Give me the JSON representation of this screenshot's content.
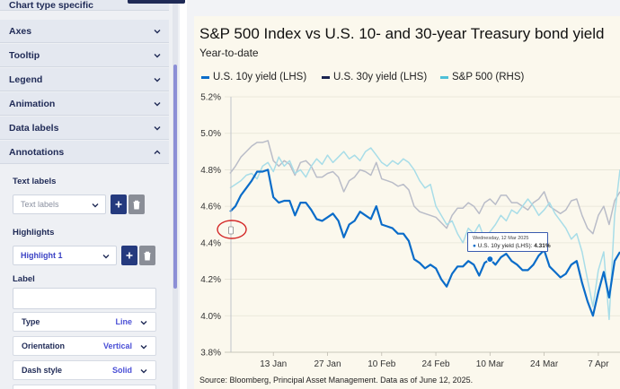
{
  "panel": {
    "top_partial_label": "Chart type specific",
    "accordions": [
      {
        "label": "Axes",
        "state": "collapsed"
      },
      {
        "label": "Tooltip",
        "state": "collapsed"
      },
      {
        "label": "Legend",
        "state": "collapsed"
      },
      {
        "label": "Animation",
        "state": "collapsed"
      },
      {
        "label": "Data labels",
        "state": "collapsed"
      },
      {
        "label": "Annotations",
        "state": "expanded"
      }
    ],
    "annotations": {
      "text_labels_heading": "Text labels",
      "text_labels_placeholder": "Text labels",
      "highlights_heading": "Highlights",
      "highlight_selected": "Highlight 1",
      "label_heading": "Label",
      "label_value": "",
      "properties": [
        {
          "name": "Type",
          "value": "Line"
        },
        {
          "name": "Orientation",
          "value": "Vertical"
        },
        {
          "name": "Dash style",
          "value": "Solid"
        }
      ]
    }
  },
  "chart": {
    "title": "S&P 500 Index vs U.S. 10- and 30-year Treasury bond yield",
    "subtitle": "Year-to-date",
    "legend": [
      {
        "label": "U.S. 10y yield (LHS)",
        "color": "#0a6cc9"
      },
      {
        "label": "U.S. 30y yield (LHS)",
        "color": "#1a2450"
      },
      {
        "label": "S&P 500 (RHS)",
        "color": "#4ec0d8"
      }
    ],
    "source": "Source: Bloomberg, Principal Asset Management. Data as of June 12, 2025.",
    "tooltip": {
      "date": "Wednesday, 12 Mar 2025",
      "series": "U.S. 10y yield (LHS):",
      "value": "4.31%"
    }
  },
  "chart_data": {
    "type": "line",
    "title": "S&P 500 Index vs U.S. 10- and 30-year Treasury bond yield",
    "subtitle": "Year-to-date",
    "ylabel": "",
    "ylim": [
      3.8,
      5.2
    ],
    "yticks": [
      "3.8%",
      "4.0%",
      "4.2%",
      "4.4%",
      "4.6%",
      "4.8%",
      "5.0%",
      "5.2%"
    ],
    "xtick_labels": [
      "13 Jan",
      "27 Jan",
      "10 Feb",
      "24 Feb",
      "10 Mar",
      "24 Mar",
      "7 Apr"
    ],
    "xtick_positions": [
      8,
      18,
      28,
      38,
      48,
      58,
      68
    ],
    "xlim": [
      0,
      72
    ],
    "series": [
      {
        "name": "U.S. 10y yield (LHS)",
        "color": "#0a6cc9",
        "x": [
          0,
          1,
          2,
          3,
          4,
          5,
          6,
          7,
          8,
          9,
          10,
          11,
          12,
          13,
          14,
          15,
          16,
          17,
          18,
          19,
          20,
          21,
          22,
          23,
          24,
          25,
          26,
          27,
          28,
          29,
          30,
          31,
          32,
          33,
          34,
          35,
          36,
          37,
          38,
          39,
          40,
          41,
          42,
          43,
          44,
          45,
          46,
          47,
          48,
          49,
          50,
          51,
          52,
          53,
          54,
          55,
          56,
          57,
          58,
          59,
          60,
          61,
          62,
          63,
          64,
          65,
          66,
          67,
          68,
          69,
          70,
          71,
          72
        ],
        "values": [
          4.57,
          4.6,
          4.66,
          4.7,
          4.74,
          4.79,
          4.79,
          4.8,
          4.65,
          4.62,
          4.63,
          4.63,
          4.55,
          4.62,
          4.62,
          4.58,
          4.53,
          4.52,
          4.54,
          4.56,
          4.52,
          4.43,
          4.5,
          4.52,
          4.57,
          4.55,
          4.53,
          4.6,
          4.5,
          4.49,
          4.48,
          4.45,
          4.45,
          4.41,
          4.31,
          4.29,
          4.26,
          4.28,
          4.26,
          4.2,
          4.16,
          4.23,
          4.27,
          4.27,
          4.3,
          4.28,
          4.22,
          4.29,
          4.31,
          4.28,
          4.32,
          4.34,
          4.3,
          4.28,
          4.25,
          4.25,
          4.28,
          4.33,
          4.36,
          4.27,
          4.24,
          4.21,
          4.23,
          4.28,
          4.3,
          4.18,
          4.08,
          4.0,
          4.13,
          4.24,
          4.1,
          4.3,
          4.35
        ]
      },
      {
        "name": "U.S. 30y yield (LHS)",
        "color": "#b9bcc8",
        "x": [
          0,
          1,
          2,
          3,
          4,
          5,
          6,
          7,
          8,
          9,
          10,
          11,
          12,
          13,
          14,
          15,
          16,
          17,
          18,
          19,
          20,
          21,
          22,
          23,
          24,
          25,
          26,
          27,
          28,
          29,
          30,
          31,
          32,
          33,
          34,
          35,
          36,
          37,
          38,
          39,
          40,
          41,
          42,
          43,
          44,
          45,
          46,
          47,
          48,
          49,
          50,
          51,
          52,
          53,
          54,
          55,
          56,
          57,
          58,
          59,
          60,
          61,
          62,
          63,
          64,
          65,
          66,
          67,
          68,
          69,
          70,
          71,
          72
        ],
        "values": [
          4.78,
          4.82,
          4.87,
          4.9,
          4.93,
          4.95,
          4.95,
          4.96,
          4.85,
          4.82,
          4.85,
          4.83,
          4.77,
          4.84,
          4.85,
          4.82,
          4.76,
          4.76,
          4.78,
          4.79,
          4.76,
          4.68,
          4.74,
          4.76,
          4.8,
          4.79,
          4.77,
          4.84,
          4.75,
          4.74,
          4.73,
          4.71,
          4.72,
          4.69,
          4.6,
          4.57,
          4.56,
          4.55,
          4.54,
          4.51,
          4.48,
          4.55,
          4.59,
          4.59,
          4.62,
          4.6,
          4.56,
          4.62,
          4.64,
          4.61,
          4.66,
          4.66,
          4.62,
          4.62,
          4.6,
          4.58,
          4.62,
          4.64,
          4.68,
          4.6,
          4.58,
          4.56,
          4.58,
          4.63,
          4.64,
          4.55,
          4.48,
          4.45,
          4.55,
          4.6,
          4.5,
          4.63,
          4.68
        ]
      },
      {
        "name": "S&P 500 (RHS)",
        "color": "#a8dde8",
        "x": [
          0,
          1,
          2,
          3,
          4,
          5,
          6,
          7,
          8,
          9,
          10,
          11,
          12,
          13,
          14,
          15,
          16,
          17,
          18,
          19,
          20,
          21,
          22,
          23,
          24,
          25,
          26,
          27,
          28,
          29,
          30,
          31,
          32,
          33,
          34,
          35,
          36,
          37,
          38,
          39,
          40,
          41,
          42,
          43,
          44,
          45,
          46,
          47,
          48,
          49,
          50,
          51,
          52,
          53,
          54,
          55,
          56,
          57,
          58,
          59,
          60,
          61,
          62,
          63,
          64,
          65,
          66,
          67,
          68,
          69,
          70,
          71,
          72
        ],
        "values": [
          4.7,
          4.72,
          4.74,
          4.77,
          4.78,
          4.75,
          4.82,
          4.84,
          4.79,
          4.87,
          4.82,
          4.85,
          4.78,
          4.8,
          4.76,
          4.82,
          4.86,
          4.83,
          4.88,
          4.84,
          4.87,
          4.9,
          4.86,
          4.88,
          4.85,
          4.9,
          4.92,
          4.88,
          4.84,
          4.82,
          4.85,
          4.83,
          4.86,
          4.84,
          4.8,
          4.74,
          4.7,
          4.72,
          4.6,
          4.55,
          4.5,
          4.52,
          4.45,
          4.4,
          4.48,
          4.45,
          4.5,
          4.42,
          4.46,
          4.5,
          4.55,
          4.52,
          4.58,
          4.56,
          4.6,
          4.64,
          4.6,
          4.55,
          4.58,
          4.62,
          4.56,
          4.52,
          4.48,
          4.42,
          4.45,
          4.35,
          4.2,
          4.05,
          4.25,
          4.35,
          3.98,
          4.55,
          4.8
        ]
      }
    ],
    "annotation": {
      "type": "vertical-line",
      "x": 0,
      "label": "Highlight 1"
    },
    "tooltip_point": {
      "x": 48,
      "y": 4.31,
      "series": "U.S. 10y yield (LHS)"
    }
  }
}
